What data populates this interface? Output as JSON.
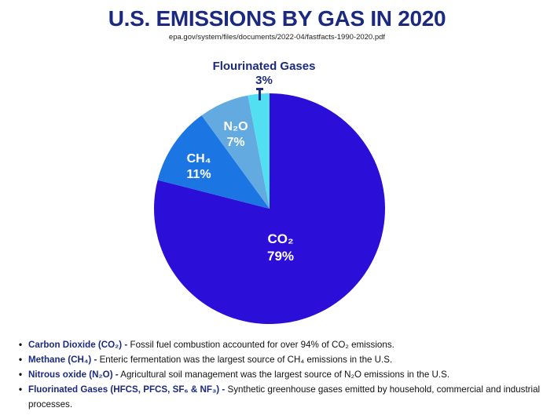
{
  "colors": {
    "navy": "#1b2a80",
    "ink": "#111111",
    "background": "#ffffff",
    "label_text": "#ffffff"
  },
  "header": {
    "title": "U.S. EMISSIONS BY GAS IN 2020",
    "source": "epa.gov/system/files/documents/2022-04/fastfacts-1990-2020.pdf"
  },
  "chart_data": {
    "type": "pie",
    "title": "U.S. EMISSIONS BY GAS IN 2020",
    "source": "epa.gov/system/files/documents/2022-04/fastfacts-1990-2020.pdf",
    "start_angle_deg": -90,
    "direction": "clockwise",
    "legend_position": "labels-on-slices",
    "slices": [
      {
        "label": "CO₂",
        "pct": 79,
        "pct_label": "79%",
        "color": "#2b0fd9"
      },
      {
        "label": "CH₄",
        "pct": 11,
        "pct_label": "11%",
        "color": "#1b76e3"
      },
      {
        "label": "N₂O",
        "pct": 7,
        "pct_label": "7%",
        "color": "#63aae0"
      },
      {
        "label": "Flourinated Gases",
        "pct": 3,
        "pct_label": "3%",
        "color": "#52dff2"
      }
    ]
  },
  "bullets": [
    {
      "term": "Carbon Dioxide (CO₂) -",
      "desc": "Fossil fuel combustion accounted for over 94% of CO₂ emissions."
    },
    {
      "term": "Methane (CH₄) -",
      "desc": "Enteric fermentation was the largest source of CH₄ emissions in the U.S."
    },
    {
      "term": "Nitrous oxide (N₂O) -",
      "desc": "Agricultural soil management was the largest source of N₂O emissions in the U.S."
    },
    {
      "term": "Fluorinated Gases (HFCS, PFCS, SF₆ & NF₃) -",
      "desc": "Synthetic greenhouse gases emitted by household, commercial and industrial processes."
    }
  ]
}
